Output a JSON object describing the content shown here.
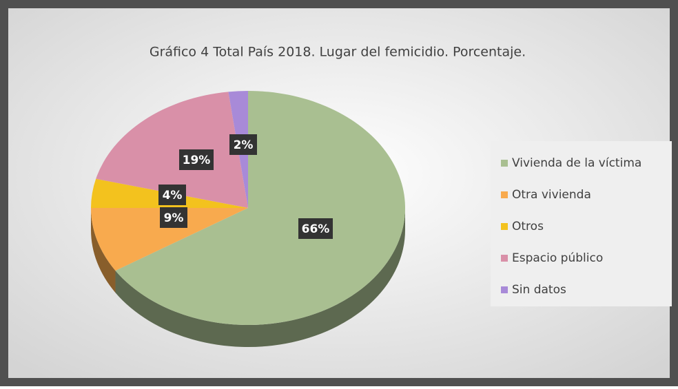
{
  "chart_data": {
    "type": "pie",
    "title": "Gráfico 4 Total País 2018.  Lugar del femicidio. Porcentaje.",
    "categories": [
      "Vivienda de la víctima",
      "Otra vivienda",
      "Otros",
      "Espacio público",
      "Sin datos"
    ],
    "values": [
      66,
      9,
      4,
      19,
      2
    ],
    "value_labels": [
      "66%",
      "9%",
      "4%",
      "19%",
      "2%"
    ],
    "colors": [
      "#a9bf91",
      "#f8aa4e",
      "#f3c21e",
      "#d990a8",
      "#a88ad8"
    ],
    "legend": "right"
  }
}
